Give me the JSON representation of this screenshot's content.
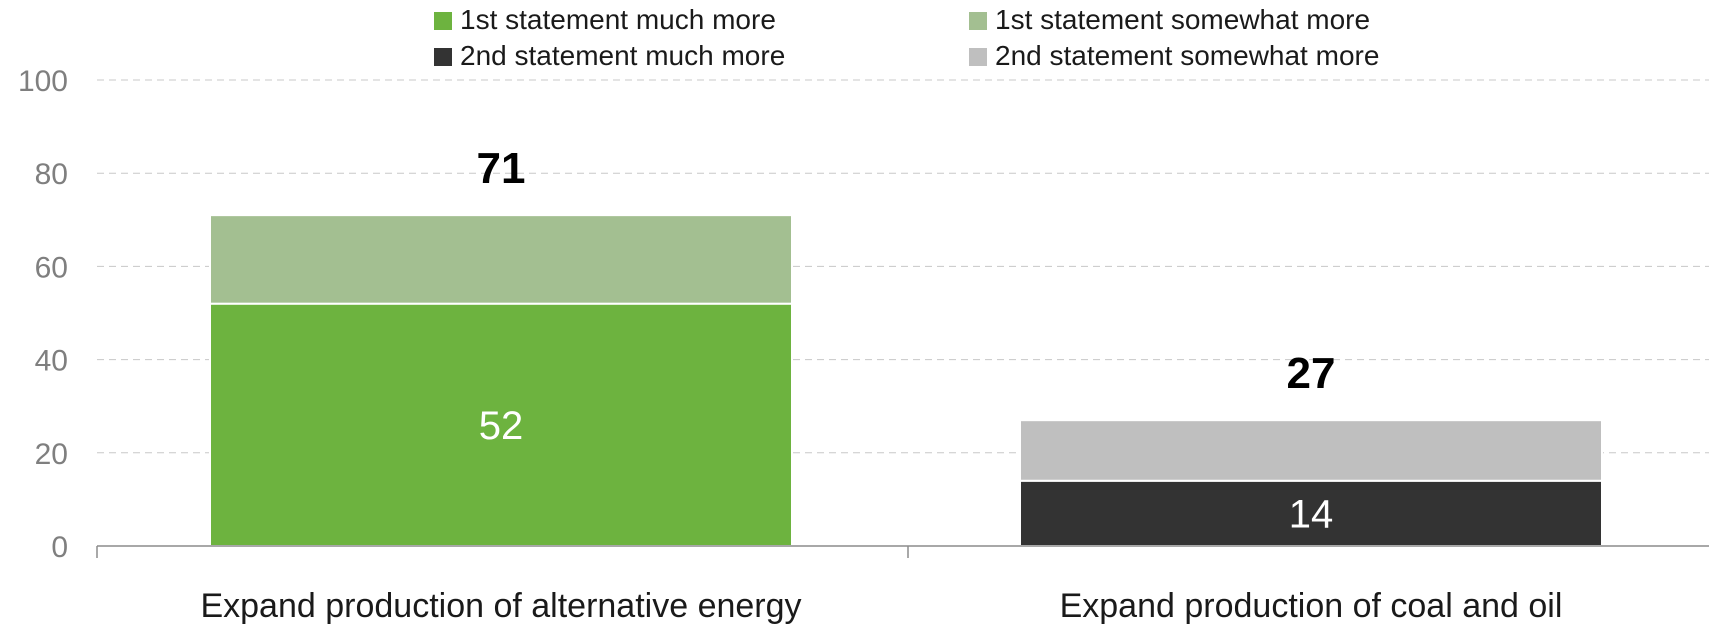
{
  "chart_data": {
    "type": "bar",
    "stacked": true,
    "categories": [
      "Expand production of alternative energy",
      "Expand production of coal and oil"
    ],
    "series": [
      {
        "name": "1st statement much more",
        "color": "#6db33f",
        "values": [
          52,
          0
        ]
      },
      {
        "name": "1st statement somewhat more",
        "color": "#a3bf91",
        "values": [
          19,
          0
        ]
      },
      {
        "name": "2nd statement much more",
        "color": "#333333",
        "values": [
          0,
          14
        ]
      },
      {
        "name": "2nd statement somewhat more",
        "color": "#bfbfbf",
        "values": [
          0,
          13
        ]
      }
    ],
    "totals": [
      "71",
      "27"
    ],
    "segment_labels": [
      {
        "category_index": 0,
        "series_index": 0,
        "text": "52"
      },
      {
        "category_index": 1,
        "series_index": 2,
        "text": "14"
      }
    ],
    "y_ticks": [
      "0",
      "20",
      "40",
      "60",
      "80",
      "100"
    ],
    "ylim": [
      0,
      100
    ],
    "grid": true,
    "legend": "top",
    "title": "",
    "xlabel": "",
    "ylabel": ""
  }
}
